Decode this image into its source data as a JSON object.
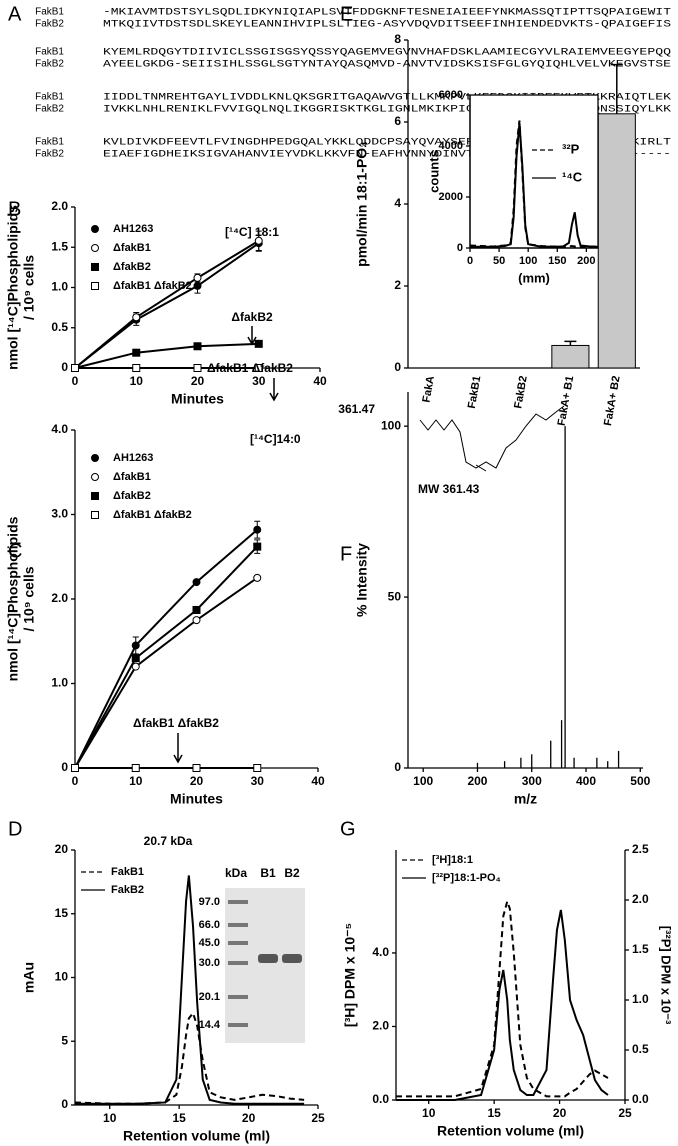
{
  "alignment": {
    "panel": "A",
    "blocks": [
      {
        "rows": [
          {
            "name": "FakB1",
            "seq": "-MKIAVMTDSTSYLSQDLIDKYNIQIAPLSVTFDDGKNFTESNEIAIEEFYNKMASSQTIPTTSQPAIGEWIT"
          },
          {
            "name": "FakB2",
            "seq": "MTKQIIVTDSTSDLSKEYLEANNIHVIPLSLTIEG-ASYVDQVDITSEEFINHIENDEDVKTS-QPAIGEFIS"
          }
        ]
      },
      {
        "rows": [
          {
            "name": "FakB1",
            "seq": "KYEMLRDQGYTDIIVICLSSGISGSYQSSYQAGEMVEGVNVHAFDSKLAAMIECGYVLRAIEMVEEGYEPQQ"
          },
          {
            "name": "FakB2",
            "seq": "AYEELGKDG-SEIISIHLSSGLSGTYNTAYQASQMVD-ANVTVIDSKSISFGLGYQIQHLVELVKEGVSTSE"
          }
        ]
      },
      {
        "rows": [
          {
            "name": "FakB1",
            "seq": "IIDDLTNMREHTGAYLIVDDLKNLQKSGRITGAQAWVGTLLKMKPVLKFEDGKIIPEEKVRTKKRAIQTLEK"
          },
          {
            "name": "FakB2",
            "seq": "IVKKLNHLRENIKLFVVIGQLNQLIKGGRISKTKGLIGNLMKIKPIGTLDDGRLELVHNARTQNSSIQYLKK"
          }
        ]
      },
      {
        "rows": [
          {
            "name": "FakB1",
            "seq": "KVLDIVKDFEEVTLFVINGDHPEDGQALYKKLQDDCPSAYQVAYSEFGPVVAAHLGSGGLGLYGVGRKIRLT"
          },
          {
            "name": "FakB2",
            "seq": "EIAEFIGDHEIKSIGVAHANVIEYVDKLKKVFN-EAFHVNNYDINVTTPVISAHTGQGAIGLVVLKK-----"
          }
        ]
      }
    ]
  },
  "chart_data": [
    {
      "type": "line",
      "panel": "B",
      "x": [
        0,
        10,
        20,
        30
      ],
      "xlim": [
        0,
        40
      ],
      "xticks": [
        0,
        10,
        20,
        30,
        40
      ],
      "ylim": [
        0,
        2
      ],
      "yticks": [
        0,
        0.5,
        {
          "value": 1,
          "label": "1.0"
        },
        1.5,
        {
          "value": 2,
          "label": "2.0"
        }
      ],
      "xlabel": "Minutes",
      "ylabel": [
        "nmol [¹⁴C]Phospholipids",
        "/ 10⁹ cells"
      ],
      "annotations": [
        "[¹⁴C] 18:1",
        "ΔfakB2",
        "ΔfakB1 ΔfakB2"
      ],
      "series": [
        {
          "name": "AH1263",
          "color": "#000000",
          "marker": "filled-circle",
          "values": [
            0,
            0.6,
            1.02,
            1.55
          ],
          "errors": [
            null,
            0.07,
            0.09,
            0.1
          ]
        },
        {
          "name": "ΔfakB1",
          "color": "#000000",
          "marker": "open-circle",
          "values": [
            0,
            0.63,
            1.12,
            1.58
          ],
          "errors": [
            null,
            0.06,
            0.05,
            0.12
          ]
        },
        {
          "name": "ΔfakB2",
          "color": "#000000",
          "marker": "filled-square",
          "values": [
            0,
            0.19,
            0.27,
            0.3
          ],
          "errors": [
            null,
            null,
            null,
            null
          ]
        },
        {
          "name": "ΔfakB1 ΔfakB2",
          "color": "#000000",
          "marker": "open-square",
          "values": [
            0,
            0,
            0,
            0
          ],
          "errors": [
            null,
            null,
            null,
            null
          ]
        }
      ]
    },
    {
      "type": "line",
      "panel": "C",
      "x": [
        0,
        10,
        20,
        30
      ],
      "xlim": [
        0,
        40
      ],
      "xticks": [
        0,
        10,
        20,
        30,
        40
      ],
      "ylim": [
        0,
        4
      ],
      "yticks": [
        0,
        {
          "value": 1,
          "label": "1.0"
        },
        {
          "value": 2,
          "label": "2.0"
        },
        {
          "value": 3,
          "label": "3.0"
        },
        {
          "value": 4,
          "label": "4.0"
        }
      ],
      "xlabel": "Minutes",
      "ylabel": [
        "nmol [¹⁴C]Phospholipids",
        "/ 10⁹ cells"
      ],
      "annotations": [
        "[¹⁴C]14:0",
        "ΔfakB1 ΔfakB2"
      ],
      "series": [
        {
          "name": "AH1263",
          "color": "#000000",
          "marker": "filled-circle",
          "values": [
            0,
            1.45,
            2.2,
            2.82
          ],
          "errors": [
            null,
            0.1,
            null,
            0.1
          ]
        },
        {
          "name": "ΔfakB1",
          "color": "#000000",
          "marker": "open-circle",
          "values": [
            0,
            1.2,
            1.75,
            2.25
          ],
          "errors": [
            null,
            null,
            null,
            null
          ]
        },
        {
          "name": "ΔfakB2",
          "color": "#000000",
          "marker": "filled-square",
          "values": [
            0,
            1.3,
            1.87,
            2.62
          ],
          "errors": [
            null,
            null,
            null,
            0.08
          ]
        },
        {
          "name": "ΔfakB1 ΔfakB2",
          "color": "#000000",
          "marker": "open-square",
          "values": [
            0,
            0,
            0,
            0
          ],
          "errors": [
            null,
            null,
            null,
            null
          ]
        }
      ]
    },
    {
      "type": "line",
      "panel": "D",
      "x": [
        7.5,
        10,
        12,
        14,
        14.8,
        15.2,
        15.5,
        15.7,
        16,
        16.3,
        16.7,
        17.2,
        18,
        19,
        20,
        21,
        22,
        23,
        24
      ],
      "xlim": [
        7.5,
        25
      ],
      "xticks": [
        10,
        15,
        20,
        25
      ],
      "ylim": [
        0,
        20
      ],
      "yticks": [
        0,
        5,
        10,
        15,
        20
      ],
      "xlabel": "Retention volume (ml)",
      "ylabel": [
        "mAu"
      ],
      "annotations": [
        "20.7 kDa"
      ],
      "inset": {
        "header": "kDa",
        "markers": [
          "97.0",
          "66.0",
          "45.0",
          "30.0",
          "20.1",
          "14.4"
        ],
        "lanes": [
          "B1",
          "B2"
        ]
      },
      "series": [
        {
          "name": "FakB1",
          "color": "#000000",
          "dash": true,
          "values": [
            0.2,
            0.1,
            0.1,
            0.2,
            0.8,
            3,
            5.5,
            6.8,
            7.2,
            6.2,
            3.5,
            1,
            0.6,
            0.4,
            0.6,
            0.8,
            0.7,
            0.5,
            0.4
          ]
        },
        {
          "name": "FakB2",
          "color": "#000000",
          "dash": false,
          "values": [
            0.1,
            0.1,
            0.1,
            0.2,
            2,
            10,
            16,
            18,
            14,
            8,
            2,
            0.4,
            0.2,
            0.1,
            0.1,
            0.1,
            0.1,
            0.1,
            0.1
          ]
        }
      ]
    },
    {
      "type": "bar",
      "panel": "E",
      "categories": [
        "FakA",
        "FakB1",
        "FakB2",
        "FakA+ B1",
        "FakA+ B2"
      ],
      "values": [
        0,
        0,
        0,
        0.55,
        6.2
      ],
      "errors": [
        null,
        null,
        null,
        0.1,
        1.2
      ],
      "color": "#c8c8c8",
      "ylim": [
        0,
        8
      ],
      "yticks": [
        0,
        2,
        4,
        6,
        8
      ],
      "ylabel": [
        "pmol/min 18:1-PO₄"
      ],
      "inset": {
        "type": "line",
        "x": [
          0,
          20,
          40,
          60,
          70,
          75,
          80,
          85,
          90,
          95,
          100,
          120,
          140,
          160,
          170,
          175,
          180,
          185,
          190,
          210,
          220
        ],
        "xlim": [
          0,
          220
        ],
        "xticks": [
          0,
          50,
          100,
          150,
          200
        ],
        "ylim": [
          0,
          6000
        ],
        "yticks": [
          0,
          2000,
          4000,
          6000
        ],
        "xlabel": "(mm)",
        "ylabel": [
          "counts"
        ],
        "series": [
          {
            "name": "³²P",
            "color": "#000000",
            "dash": true,
            "values": [
              100,
              80,
              60,
              100,
              200,
              1500,
              4000,
              5000,
              3000,
              800,
              150,
              80,
              60,
              60,
              60,
              80,
              60,
              60,
              60,
              60,
              60
            ]
          },
          {
            "name": "¹⁴C",
            "color": "#000000",
            "dash": false,
            "values": [
              50,
              50,
              50,
              80,
              150,
              1200,
              3600,
              4900,
              3200,
              900,
              150,
              60,
              50,
              60,
              200,
              900,
              1400,
              500,
              100,
              50,
              50
            ]
          }
        ]
      }
    },
    {
      "type": "spectrum",
      "panel": "F",
      "x": [
        200,
        250,
        280,
        300,
        335,
        355,
        361.47,
        378,
        420,
        440,
        460
      ],
      "values": [
        1.5,
        2,
        3,
        4,
        8,
        14,
        100,
        3,
        3,
        2,
        5
      ],
      "color": "#000000",
      "xlim": [
        72,
        505
      ],
      "xticks": [
        100,
        200,
        300,
        400,
        500
      ],
      "ylim": [
        0,
        110
      ],
      "yticks": [
        0,
        50,
        100
      ],
      "xlabel": "m/z",
      "ylabel": [
        "% Intensity"
      ],
      "annotations": [
        "361.47",
        "MW 361.43"
      ]
    },
    {
      "type": "line",
      "panel": "G",
      "x": [
        7.5,
        10,
        12,
        14,
        15,
        15.4,
        15.7,
        16,
        16.2,
        16.5,
        17,
        17.5,
        18,
        19,
        19.5,
        19.8,
        20.1,
        20.4,
        20.8,
        21.3,
        21.8,
        22.3,
        22.7,
        23.2,
        23.7
      ],
      "xlim": [
        7.5,
        25
      ],
      "xticks": [
        10,
        15,
        20,
        25
      ],
      "ylim": [
        0,
        6.8
      ],
      "yticks": [
        {
          "value": 0,
          "label": "0.0"
        },
        {
          "value": 2,
          "label": "2.0"
        },
        {
          "value": 4,
          "label": "4.0"
        }
      ],
      "y2lim": [
        0,
        2.5
      ],
      "y2ticks": [
        {
          "value": 0,
          "label": "0.0"
        },
        0.5,
        {
          "value": 1,
          "label": "1.0"
        },
        1.5,
        {
          "value": 2,
          "label": "2.0"
        },
        2.5
      ],
      "xlabel": "Retention volume (ml)",
      "ylabel": [
        "[³H] DPM x 10⁻⁵"
      ],
      "y2label": "[³²P] DPM x 10⁻³",
      "series": [
        {
          "name": "[³H]18:1",
          "color": "#000000",
          "dash": true,
          "values": [
            0.1,
            0.1,
            0.1,
            0.3,
            1.5,
            3.5,
            5,
            5.4,
            5.2,
            4,
            1.5,
            0.6,
            0.3,
            0.1,
            0.1,
            0.1,
            0.1,
            0.1,
            0.2,
            0.3,
            0.5,
            0.7,
            0.8,
            0.7,
            0.6
          ]
        },
        {
          "name": "[³²P]18:1-PO₄",
          "color": "#000000",
          "dash": false,
          "axis": "y2",
          "values": [
            0,
            0,
            0,
            0.05,
            0.5,
            1.1,
            1.3,
            1,
            0.6,
            0.3,
            0.1,
            0.05,
            0.05,
            0.3,
            1.2,
            1.7,
            1.9,
            1.6,
            1,
            0.8,
            0.65,
            0.4,
            0.2,
            0.1,
            0.05
          ]
        }
      ]
    }
  ]
}
